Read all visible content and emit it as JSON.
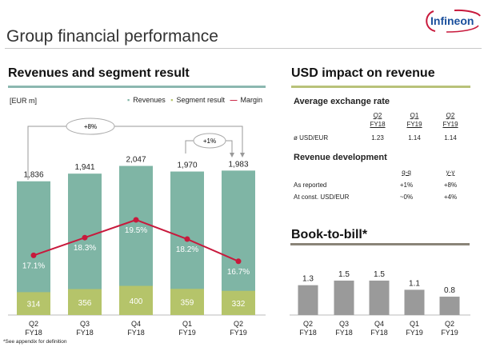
{
  "slide": {
    "title": "Group financial performance",
    "logo_text": "Infineon",
    "footnote": "*See appendix for definition"
  },
  "left_panel": {
    "heading": "Revenues and segment result",
    "unit": "[EUR m]",
    "legend": {
      "revenues": "Revenues",
      "segment": "Segment result",
      "margin": "Margin"
    },
    "annotations": {
      "yoy": "+8%",
      "qoq": "+1%"
    }
  },
  "right_panel": {
    "heading": "USD impact on revenue",
    "exchange": {
      "heading": "Average exchange rate",
      "columns": [
        [
          "Q2",
          "FY18"
        ],
        [
          "Q1",
          "FY19"
        ],
        [
          "Q2",
          "FY19"
        ]
      ],
      "row_label": "ø USD/EUR",
      "values": [
        "1.23",
        "1.14",
        "1.14"
      ]
    },
    "revenue_dev": {
      "heading": "Revenue development",
      "columns": [
        "q-q",
        "y-y"
      ],
      "rows": [
        {
          "label": "As reported",
          "values": [
            "+1%",
            "+8%"
          ]
        },
        {
          "label": "At const. USD/EUR",
          "values": [
            "~0%",
            "+4%"
          ]
        }
      ]
    },
    "btb_heading": "Book-to-bill*"
  },
  "colors": {
    "revenues": "#7fb5a5",
    "segment": "#b5c46a",
    "margin": "#c8193c",
    "btb": "#9a9a9a",
    "teal_rule": "#8cb8b0",
    "olive_rule": "#b9c27a",
    "gray_rule": "#8a8478"
  },
  "chart_data": [
    {
      "type": "bar",
      "categories": [
        [
          "Q2",
          "FY18"
        ],
        [
          "Q3",
          "FY18"
        ],
        [
          "Q4",
          "FY18"
        ],
        [
          "Q1",
          "FY19"
        ],
        [
          "Q2",
          "FY19"
        ]
      ],
      "series": [
        {
          "name": "Revenues",
          "values": [
            1836,
            1941,
            2047,
            1970,
            1983
          ],
          "labels": [
            "1,836",
            "1,941",
            "2,047",
            "1,970",
            "1,983"
          ]
        },
        {
          "name": "Segment result",
          "values": [
            314,
            356,
            400,
            359,
            332
          ],
          "labels": [
            "314",
            "356",
            "400",
            "359",
            "332"
          ]
        },
        {
          "name": "Margin",
          "type": "line",
          "values": [
            17.1,
            18.3,
            19.5,
            18.2,
            16.7
          ],
          "labels": [
            "17.1%",
            "18.3%",
            "19.5%",
            "18.2%",
            "16.7%"
          ]
        }
      ],
      "xlabel": "",
      "ylabel": ""
    },
    {
      "type": "bar",
      "title": "Book-to-bill*",
      "categories": [
        [
          "Q2",
          "FY18"
        ],
        [
          "Q3",
          "FY18"
        ],
        [
          "Q4",
          "FY18"
        ],
        [
          "Q1",
          "FY19"
        ],
        [
          "Q2",
          "FY19"
        ]
      ],
      "values": [
        1.3,
        1.5,
        1.5,
        1.1,
        0.8
      ],
      "labels": [
        "1.3",
        "1.5",
        "1.5",
        "1.1",
        "0.8"
      ]
    }
  ]
}
